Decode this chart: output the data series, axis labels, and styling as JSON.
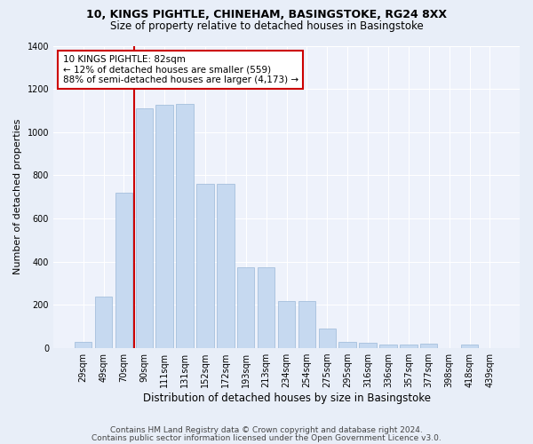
{
  "title1": "10, KINGS PIGHTLE, CHINEHAM, BASINGSTOKE, RG24 8XX",
  "title2": "Size of property relative to detached houses in Basingstoke",
  "xlabel": "Distribution of detached houses by size in Basingstoke",
  "ylabel": "Number of detached properties",
  "categories": [
    "29sqm",
    "49sqm",
    "70sqm",
    "90sqm",
    "111sqm",
    "131sqm",
    "152sqm",
    "172sqm",
    "193sqm",
    "213sqm",
    "234sqm",
    "254sqm",
    "275sqm",
    "295sqm",
    "316sqm",
    "336sqm",
    "357sqm",
    "377sqm",
    "398sqm",
    "418sqm",
    "439sqm"
  ],
  "values": [
    30,
    240,
    720,
    1110,
    1125,
    1130,
    760,
    760,
    375,
    375,
    220,
    220,
    90,
    30,
    25,
    18,
    15,
    20,
    0,
    18,
    0
  ],
  "bar_color": "#c6d9f0",
  "bar_edge_color": "#9bb8d8",
  "vline_position": 2.5,
  "vline_color": "#cc0000",
  "annotation_text": "10 KINGS PIGHTLE: 82sqm\n← 12% of detached houses are smaller (559)\n88% of semi-detached houses are larger (4,173) →",
  "annotation_box_color": "#cc0000",
  "ylim": [
    0,
    1400
  ],
  "yticks": [
    0,
    200,
    400,
    600,
    800,
    1000,
    1200,
    1400
  ],
  "footer1": "Contains HM Land Registry data © Crown copyright and database right 2024.",
  "footer2": "Contains public sector information licensed under the Open Government Licence v3.0.",
  "bg_color": "#e8eef8",
  "plot_bg_color": "#eef2fb",
  "title1_fontsize": 9,
  "title2_fontsize": 8.5,
  "ylabel_fontsize": 8,
  "xlabel_fontsize": 8.5,
  "tick_fontsize": 7,
  "footer_fontsize": 6.5
}
